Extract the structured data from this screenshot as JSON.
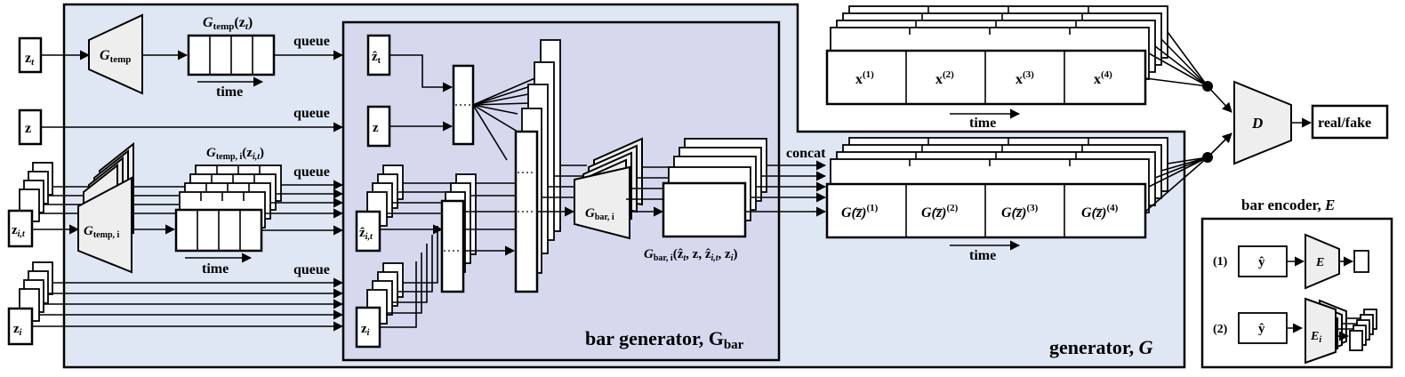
{
  "inputs": {
    "z_t": "z",
    "z_t_sub": "t",
    "z": "z",
    "z_it": "z",
    "z_it_sub": "i,t",
    "z_i": "z",
    "z_i_sub": "i"
  },
  "temporal": {
    "g_temp": "G",
    "g_temp_sub": "temp",
    "g_temp_out": "G",
    "g_temp_out_sub": "temp",
    "g_temp_out_arg": "(z",
    "g_temp_out_arg_sub": "t",
    "g_temp_out_close": ")",
    "g_temp_i": "G",
    "g_temp_i_sub": "temp, i",
    "g_temp_i_out": "G",
    "g_temp_i_out_sub": "temp, i",
    "g_temp_i_out_arg": "(z",
    "g_temp_i_out_arg_sub": "i,t",
    "g_temp_i_out_close": ")"
  },
  "labels": {
    "queue": "queue",
    "time": "time",
    "concat": "concat"
  },
  "bar_generator": {
    "zhat_t": "ẑ",
    "zhat_t_sub": "t",
    "z": "z",
    "zhat_it": "ẑ",
    "zhat_it_sub": "i,t",
    "z_i": "z",
    "z_i_sub": "i",
    "g_bar_i": "G",
    "g_bar_i_sub": "bar, i",
    "output_label": "G",
    "output_label_sub": "bar, i",
    "output_label_args": "(ẑ",
    "output_label_args_t": "t",
    "output_label_args_mid": ", z, ẑ",
    "output_label_args_it": "i,t",
    "output_label_args_end": ", z",
    "output_label_args_i": "i",
    "output_label_close": ")",
    "title": "bar generator, G",
    "title_sub": "bar"
  },
  "generator_title": "generator, ",
  "generator_title_g": "G",
  "real_bars": [
    {
      "base": "x",
      "sup": "(1)"
    },
    {
      "base": "x",
      "sup": "(2)"
    },
    {
      "base": "x",
      "sup": "(3)"
    },
    {
      "base": "x",
      "sup": "(4)"
    }
  ],
  "generated_bars": [
    {
      "base": "G(z̅)",
      "sup": "(1)"
    },
    {
      "base": "G(z̅)",
      "sup": "(2)"
    },
    {
      "base": "G(z̅)",
      "sup": "(3)"
    },
    {
      "base": "G(z̅)",
      "sup": "(4)"
    }
  ],
  "discriminator": {
    "label": "D",
    "output": "real/fake"
  },
  "encoder": {
    "title": "bar encoder, ",
    "title_e": "E",
    "case1": "(1)",
    "case2": "(2)",
    "y_hat": "ŷ",
    "e": "E",
    "e_i": "E",
    "e_i_sub": "i"
  },
  "colors": {
    "generator_bg": "#dfe7f4",
    "bar_generator_bg": "#d6d9ee",
    "trapezoid_fill": "#eeeeee",
    "stroke": "#000000"
  }
}
